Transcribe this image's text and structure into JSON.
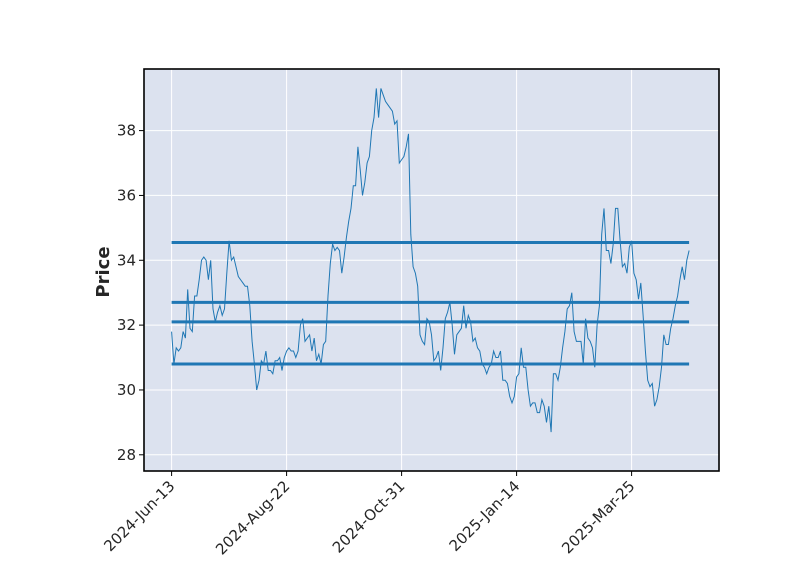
{
  "chart_data": {
    "type": "line",
    "title": "",
    "xlabel": "",
    "ylabel": "Price",
    "ylim": [
      27.5,
      39.9
    ],
    "y_ticks": [
      28,
      30,
      32,
      34,
      36,
      38
    ],
    "x_ticks": [
      "2024-Jun-13",
      "2024-Aug-22",
      "2024-Oct-31",
      "2025-Jan-14",
      "2025-Mar-25"
    ],
    "x_tick_index": [
      0,
      50,
      100,
      150,
      200
    ],
    "x_index_range": [
      -12,
      238
    ],
    "grid": true,
    "legend": "none",
    "colors": {
      "plot_bg": "#dce2ef",
      "grid": "#ffffff",
      "line": "#1f77b4",
      "hline": "#1f77b4",
      "frame": "#000000"
    },
    "series": [
      {
        "values": [
          31.8,
          30.8,
          31.3,
          31.2,
          31.3,
          31.8,
          31.6,
          33.1,
          31.9,
          31.8,
          32.9,
          32.9,
          33.4,
          34.0,
          34.1,
          34.0,
          33.4,
          34.0,
          32.5,
          32.1,
          32.4,
          32.6,
          32.3,
          32.5,
          33.6,
          34.6,
          34.0,
          34.1,
          33.8,
          33.5,
          33.4,
          33.3,
          33.2,
          33.2,
          32.6,
          31.5,
          30.8,
          30.0,
          30.3,
          30.9,
          30.8,
          31.2,
          30.6,
          30.6,
          30.5,
          30.9,
          30.9,
          31.0,
          30.6,
          31.0,
          31.2,
          31.3,
          31.2,
          31.2,
          31.0,
          31.2,
          32.0,
          32.2,
          31.5,
          31.6,
          31.7,
          31.2,
          31.6,
          30.9,
          31.1,
          30.8,
          31.4,
          31.5,
          32.9,
          33.9,
          34.5,
          34.3,
          34.4,
          34.3,
          33.6,
          34.1,
          34.7,
          35.2,
          35.6,
          36.3,
          36.3,
          37.5,
          36.8,
          36.0,
          36.4,
          37.0,
          37.2,
          38.0,
          38.4,
          39.3,
          38.4,
          39.3,
          39.1,
          38.9,
          38.8,
          38.7,
          38.6,
          38.2,
          38.3,
          37.0,
          37.1,
          37.2,
          37.5,
          37.9,
          34.8,
          33.8,
          33.6,
          33.2,
          31.7,
          31.5,
          31.4,
          32.2,
          32.1,
          31.7,
          30.9,
          31.0,
          31.2,
          30.6,
          31.3,
          32.2,
          32.4,
          32.7,
          32.0,
          31.1,
          31.7,
          31.8,
          31.9,
          32.6,
          31.9,
          32.3,
          32.1,
          31.5,
          31.6,
          31.3,
          31.2,
          30.8,
          30.7,
          30.5,
          30.7,
          30.8,
          31.2,
          31.0,
          31.0,
          31.2,
          30.3,
          30.3,
          30.2,
          29.8,
          29.6,
          29.8,
          30.4,
          30.5,
          31.3,
          30.7,
          30.7,
          30.0,
          29.5,
          29.6,
          29.6,
          29.3,
          29.3,
          29.7,
          29.5,
          29.0,
          29.5,
          28.7,
          30.5,
          30.5,
          30.3,
          30.7,
          31.3,
          31.8,
          32.5,
          32.6,
          33.0,
          31.8,
          31.5,
          31.5,
          31.5,
          30.8,
          32.2,
          31.6,
          31.5,
          31.3,
          30.7,
          32.0,
          32.6,
          34.8,
          35.6,
          34.3,
          34.3,
          33.9,
          34.5,
          35.6,
          35.6,
          34.6,
          33.8,
          33.9,
          33.6,
          34.4,
          34.6,
          33.6,
          33.4,
          32.8,
          33.3,
          32.3,
          31.2,
          30.3,
          30.1,
          30.2,
          29.5,
          29.7,
          30.1,
          30.7,
          31.7,
          31.4,
          31.4,
          31.9,
          32.2,
          32.6,
          32.9,
          33.4,
          33.8,
          33.4,
          34.0,
          34.3
        ]
      }
    ],
    "hlines": [
      34.55,
      32.7,
      32.1,
      30.8
    ]
  }
}
